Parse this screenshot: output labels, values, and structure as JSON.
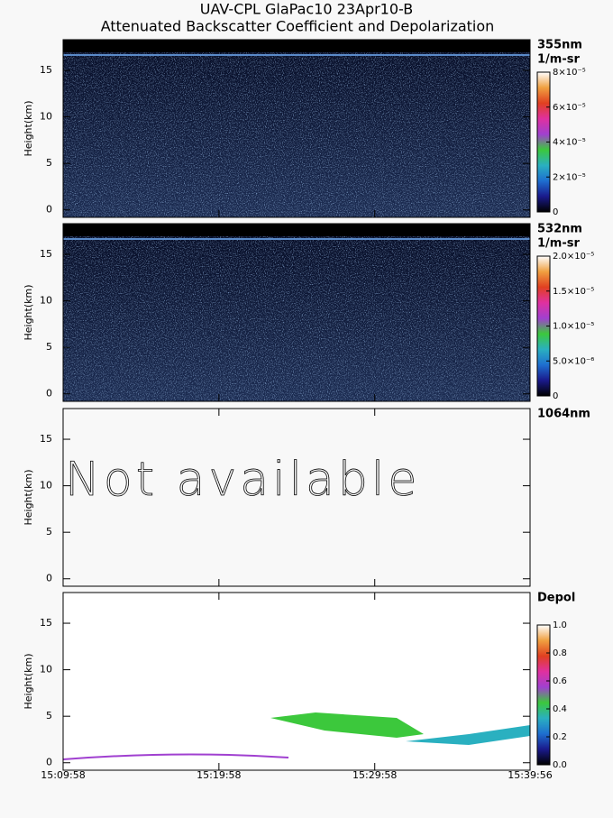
{
  "title": "UAV-CPL GlaPac10 23Apr10-B",
  "subtitle": "Attenuated Backscatter Coefficient and Depolarization",
  "chart_data": [
    {
      "type": "heatmap",
      "label": "355nm",
      "unit": "1/m-sr",
      "ylabel": "Height(km)",
      "ylim": [
        -0.8,
        18.3
      ],
      "yticks": [
        0,
        5,
        10,
        15
      ],
      "colorbar": {
        "lim": [
          0,
          8e-05
        ],
        "ticks": [
          0,
          {
            "value": 2e-05,
            "label": "2×10⁻⁵"
          },
          {
            "value": 4e-05,
            "label": "4×10⁻⁵"
          },
          {
            "value": 6e-05,
            "label": "6×10⁻⁵"
          },
          {
            "value": 8e-05,
            "label": "8×10⁻⁵"
          }
        ],
        "colors": [
          "#000000",
          "#1a1a8c",
          "#1e6fd0",
          "#2ab0c0",
          "#3cc83c",
          "#a040d0",
          "#e030a0",
          "#e04020",
          "#f0a040",
          "#ffffff"
        ]
      }
    },
    {
      "type": "heatmap",
      "label": "532nm",
      "unit": "1/m-sr",
      "ylabel": "Height(km)",
      "ylim": [
        -0.8,
        18.3
      ],
      "yticks": [
        0,
        5,
        10,
        15
      ],
      "colorbar": {
        "lim": [
          0,
          2e-05
        ],
        "ticks": [
          0,
          {
            "value": 5e-06,
            "label": "5.0×10⁻⁶"
          },
          {
            "value": 1e-05,
            "label": "1.0×10⁻⁵"
          },
          {
            "value": 1.5e-05,
            "label": "1.5×10⁻⁵"
          },
          {
            "value": 2e-05,
            "label": "2.0×10⁻⁵"
          }
        ],
        "colors": [
          "#000000",
          "#1a1a8c",
          "#1e6fd0",
          "#2ab0c0",
          "#3cc83c",
          "#a040d0",
          "#e030a0",
          "#e04020",
          "#f0a040",
          "#ffffff"
        ]
      }
    },
    {
      "type": "unavailable",
      "label": "1064nm",
      "ylabel": "Height(km)",
      "note": "Not available",
      "ylim": [
        -0.8,
        18.3
      ],
      "yticks": [
        0,
        5,
        10,
        15
      ]
    },
    {
      "type": "heatmap",
      "label": "Depol",
      "ylabel": "Height(km)",
      "ylim": [
        -0.8,
        18.3
      ],
      "yticks": [
        0,
        5,
        10,
        15
      ],
      "xlim": [
        0,
        1798
      ],
      "xticks": [
        {
          "value": 0,
          "label": "15:09:58"
        },
        {
          "value": 600,
          "label": "15:19:58"
        },
        {
          "value": 1200,
          "label": "15:29:58"
        },
        {
          "value": 1798,
          "label": "15:39:56"
        }
      ],
      "colorbar": {
        "lim": [
          0,
          1
        ],
        "ticks": [
          {
            "value": 0,
            "label": "0.0"
          },
          0.2,
          0.4,
          0.6,
          0.8,
          {
            "value": 1,
            "label": "1.0"
          }
        ],
        "colors": [
          "#000000",
          "#1a1a8c",
          "#1e6fd0",
          "#2ab0c0",
          "#3cc83c",
          "#a040d0",
          "#e030a0",
          "#e04020",
          "#f0a040",
          "#ffffff"
        ]
      }
    }
  ]
}
